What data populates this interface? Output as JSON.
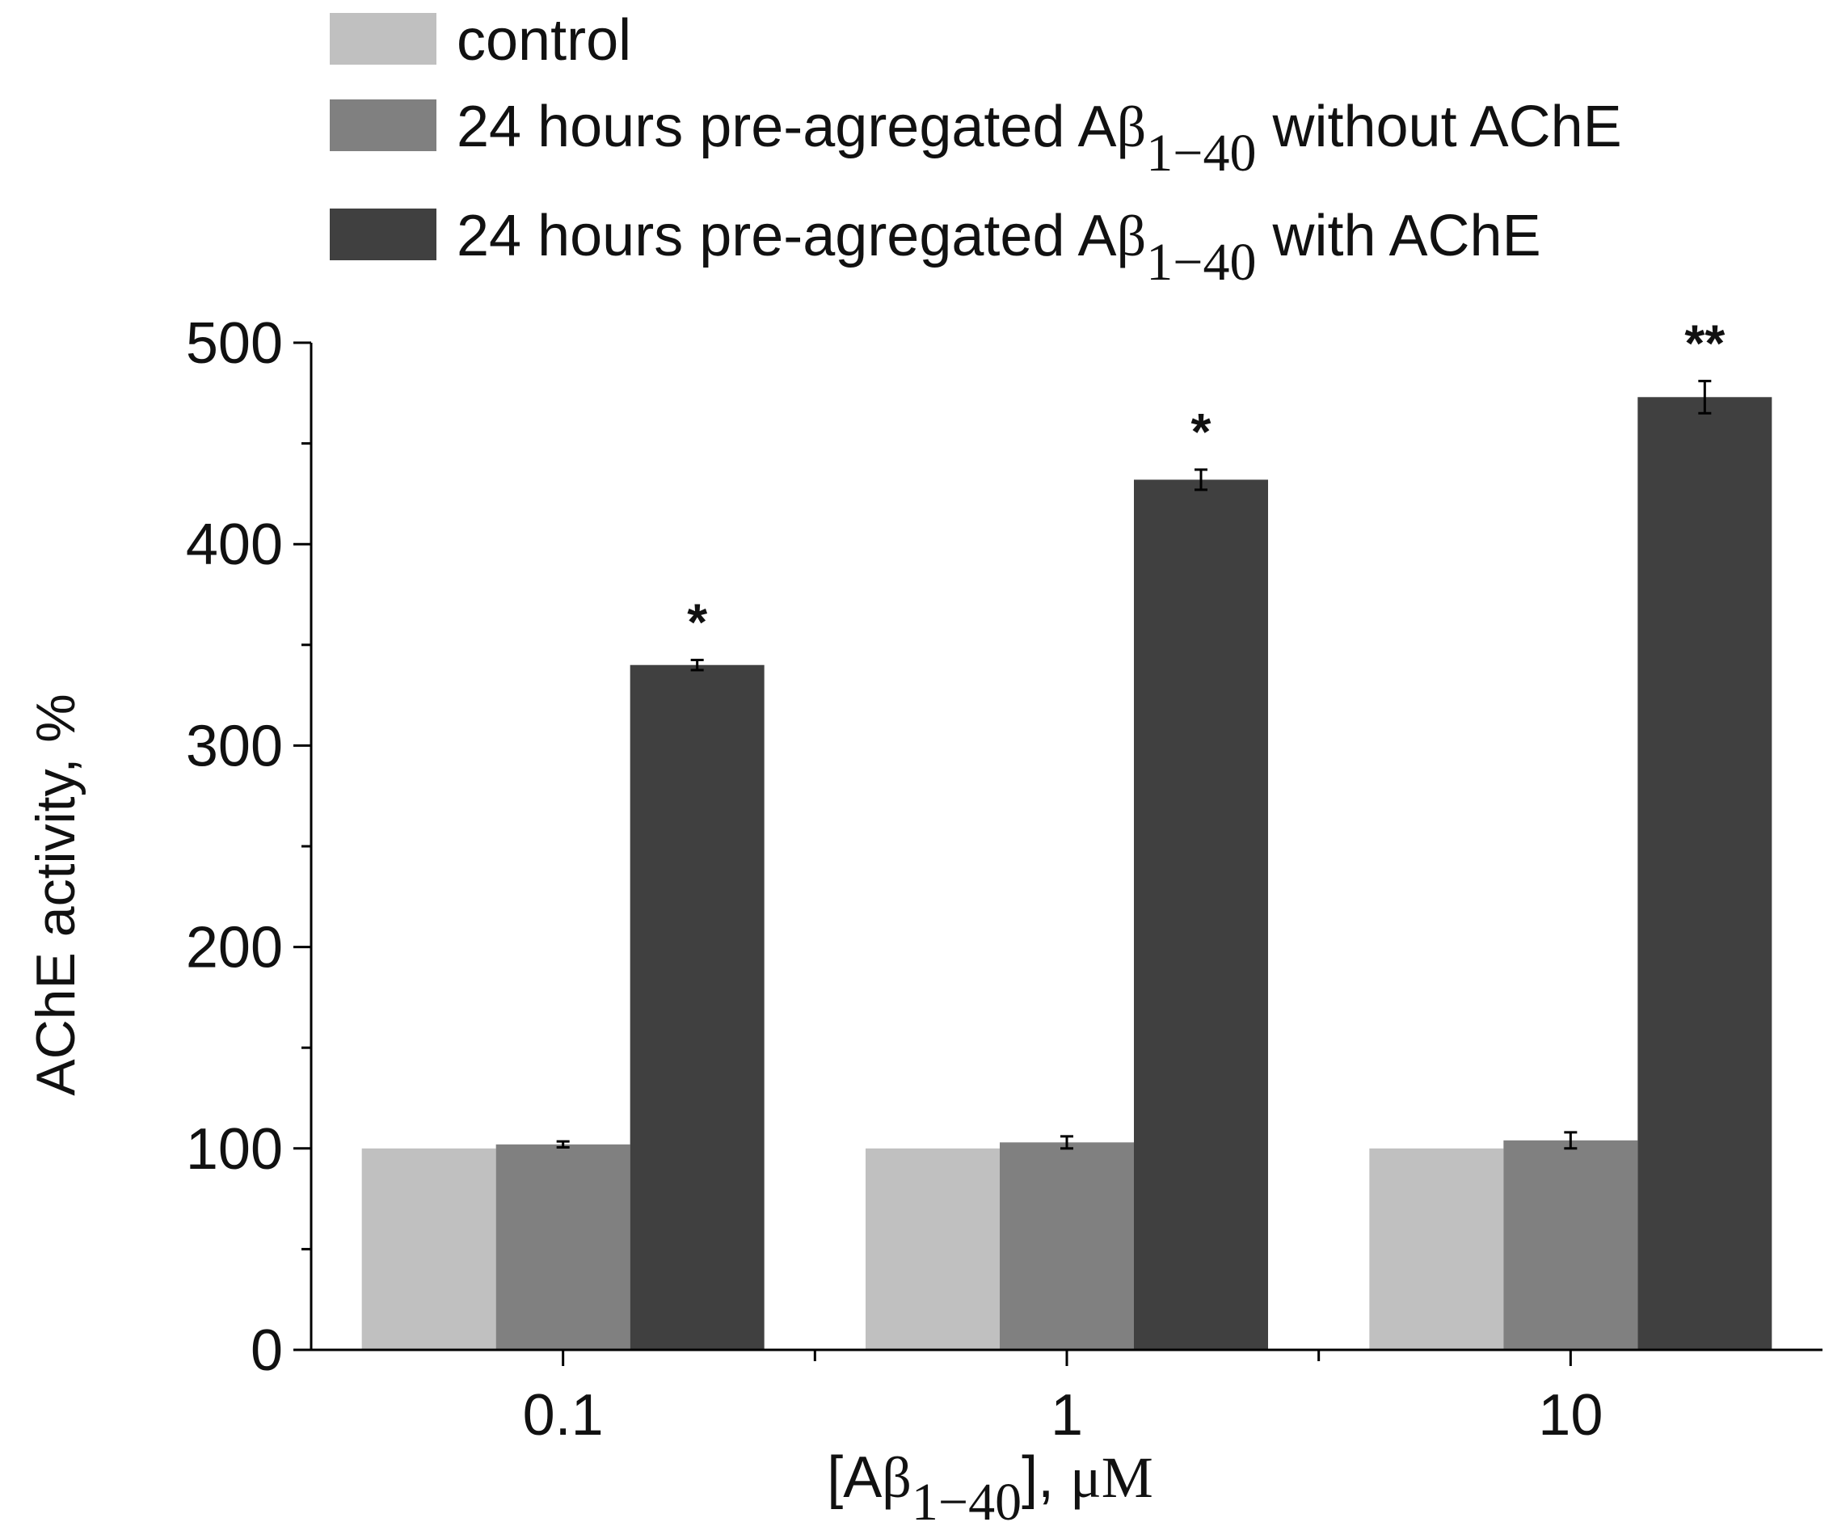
{
  "chart_data": {
    "type": "bar",
    "categories": [
      "0.1",
      "1",
      "10"
    ],
    "series": [
      {
        "name": "control",
        "values": [
          100,
          100,
          100
        ],
        "errors": [
          0,
          0,
          0
        ],
        "color": "#c0c0c0"
      },
      {
        "name_parts": {
          "pre": "24 hours pre-agregated A",
          "greek": "β",
          "sub": "1−40",
          "post": " without AChE"
        },
        "values": [
          102,
          103,
          104
        ],
        "errors": [
          1.5,
          3,
          4
        ],
        "color": "#808080"
      },
      {
        "name_parts": {
          "pre": "24 hours pre-agregated A",
          "greek": "β",
          "sub": "1−40",
          "post": " with AChE"
        },
        "values": [
          340,
          432,
          473
        ],
        "errors": [
          2.5,
          5,
          8
        ],
        "color": "#404040"
      }
    ],
    "significance": [
      "*",
      "*",
      "**"
    ],
    "ylabel": "AChE activity, %",
    "xlabel_parts": {
      "pre": "[A",
      "greek": "β",
      "sub": "1−40",
      "post": "], ",
      "unit": "μM"
    },
    "ylim": [
      0,
      500
    ],
    "yticks": [
      0,
      100,
      200,
      300,
      400,
      500
    ],
    "grid": false,
    "legend_position": "top-left"
  }
}
